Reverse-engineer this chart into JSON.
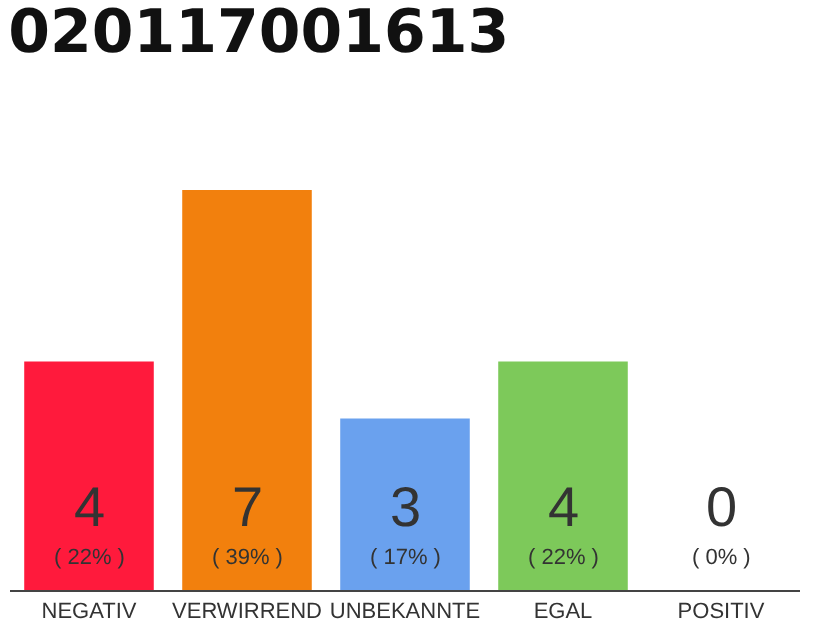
{
  "chart_data": {
    "type": "bar",
    "title": "020117001613",
    "categories": [
      "NEGATIV",
      "VERWIRREND",
      "UNBEKANNTE",
      "EGAL",
      "POSITIV"
    ],
    "values": [
      4,
      7,
      3,
      4,
      0
    ],
    "colors": [
      "#ff1a3c",
      "#f2800d",
      "#6aa1ee",
      "#7dc95a",
      "#c8c8c8"
    ],
    "ylim": [
      0,
      7
    ],
    "data_labels": true,
    "annotations": [
      {
        "text": "( 22% )",
        "x": "NEGATIV",
        "y": 0
      },
      {
        "text": "( 39% )",
        "x": "VERWIRREND",
        "y": 0
      },
      {
        "text": "( 17% )",
        "x": "UNBEKANNTE",
        "y": 0
      },
      {
        "text": "( 22% )",
        "x": "EGAL",
        "y": 0
      },
      {
        "text": "( 0% )",
        "x": "POSITIV",
        "y": 0
      }
    ]
  }
}
